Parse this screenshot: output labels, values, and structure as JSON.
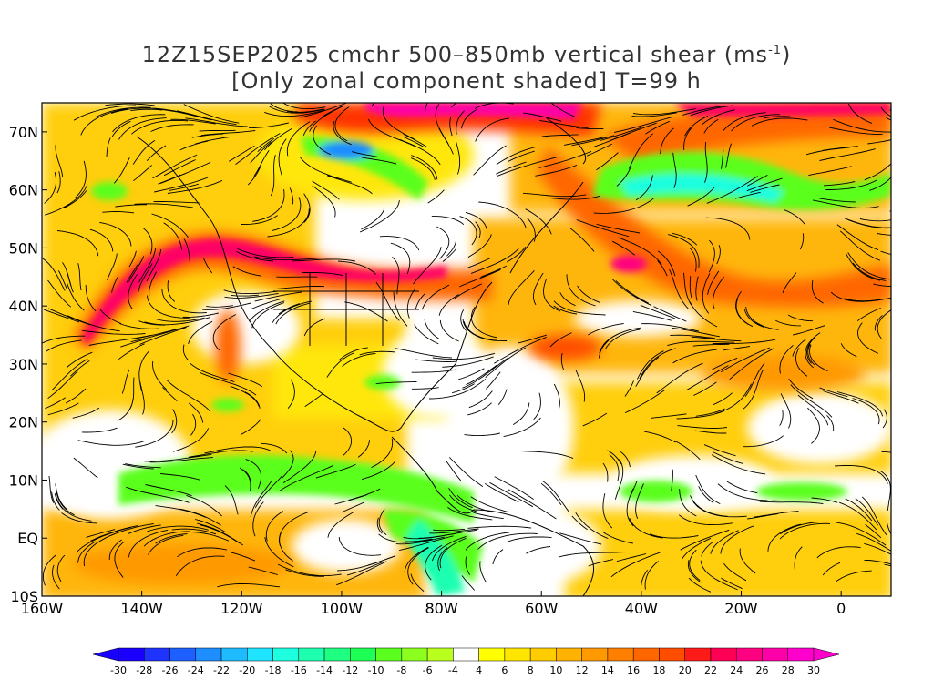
{
  "title": {
    "line1_prefix": "12Z15SEP2025 cmchr 500–850mb vertical shear (ms",
    "line1_sup": "-1",
    "line1_suffix": ")",
    "line2": "[Only zonal component shaded] T=99 h"
  },
  "map": {
    "lat_labels": [
      "70N",
      "60N",
      "50N",
      "40N",
      "30N",
      "20N",
      "10N",
      "EQ",
      "10S"
    ],
    "lon_labels": [
      "160W",
      "140W",
      "120W",
      "100W",
      "80W",
      "60W",
      "40W",
      "20W",
      "0"
    ],
    "lat_range": [
      -10,
      75
    ],
    "lon_range": [
      -160,
      10
    ],
    "field": "zonal component of 500-850mb vertical shear",
    "overlay": "streamlines"
  },
  "colorbar": {
    "labels": [
      "-30",
      "-28",
      "-26",
      "-24",
      "-22",
      "-20",
      "-18",
      "-16",
      "-14",
      "-12",
      "-10",
      "-8",
      "-6",
      "-4",
      "4",
      "6",
      "8",
      "10",
      "12",
      "14",
      "16",
      "18",
      "20",
      "22",
      "24",
      "26",
      "28",
      "30"
    ],
    "colors": [
      "#1a00ff",
      "#1f33ff",
      "#1e5fff",
      "#1e8dff",
      "#1ebbff",
      "#1ee4ff",
      "#1effe0",
      "#1effb0",
      "#1eff82",
      "#1eff55",
      "#5aff1e",
      "#8cff1e",
      "#b8ff1e",
      "#ffffff",
      "#ffff00",
      "#ffe600",
      "#ffcc00",
      "#ffb300",
      "#ff9900",
      "#ff8000",
      "#ff6600",
      "#ff4d00",
      "#ff1a1a",
      "#ff0055",
      "#ff0080",
      "#ff00a8",
      "#ff00cc"
    ]
  }
}
